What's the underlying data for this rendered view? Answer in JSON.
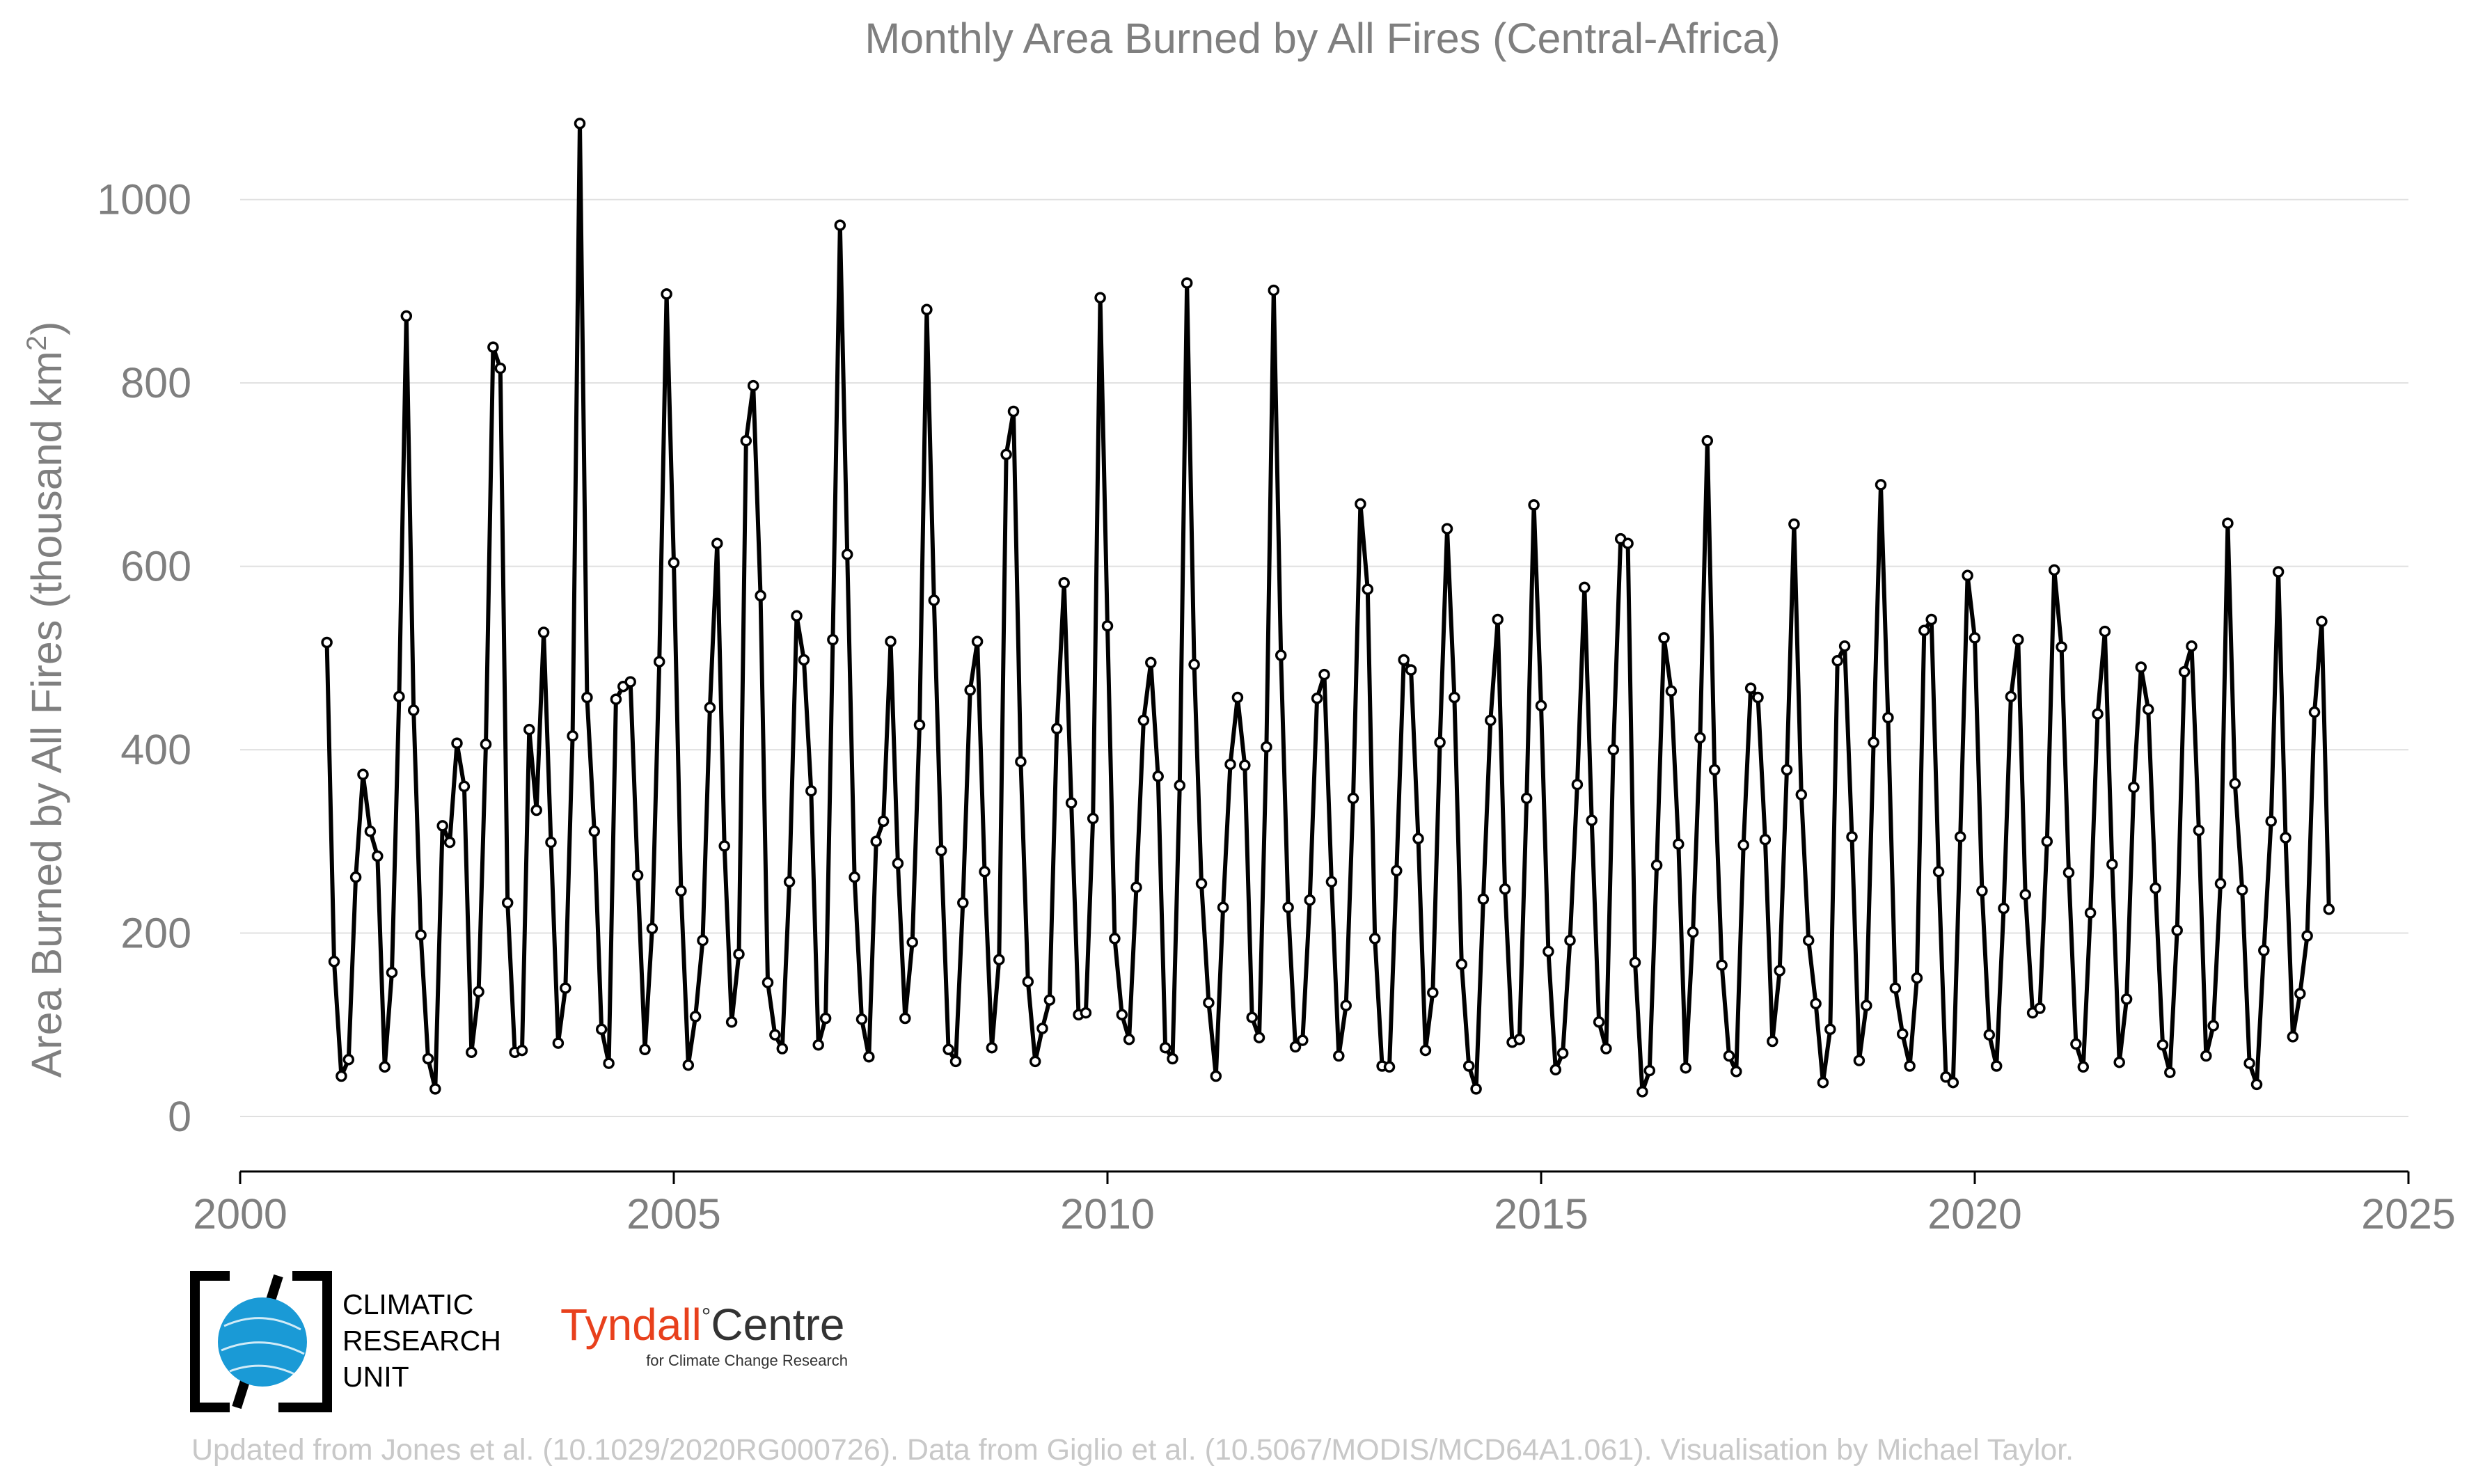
{
  "chart_data": {
    "type": "line",
    "title": "Monthly Area Burned by All Fires (Central-Africa)",
    "ylabel": "Area Burned by All Fires (thousand km",
    "ylabel_sup": "2",
    "ylabel_close": ")",
    "xlabel": "",
    "xlim": [
      2000,
      2025
    ],
    "ylim": [
      -60,
      1100
    ],
    "x_ticks": [
      "2000",
      "2005",
      "2010",
      "2015",
      "2020",
      "2025"
    ],
    "y_ticks": [
      "0",
      "200",
      "400",
      "600",
      "800",
      "1000"
    ],
    "grid": "horizontal",
    "x_start": "2001-01",
    "x_step": "1 month",
    "values": [
      517,
      169,
      44,
      62,
      261,
      373,
      311,
      284,
      54,
      157,
      458,
      873,
      443,
      198,
      63,
      30,
      317,
      299,
      407,
      360,
      70,
      136,
      406,
      839,
      816,
      233,
      70,
      72,
      422,
      334,
      528,
      299,
      80,
      140,
      415,
      1083,
      457,
      311,
      95,
      58,
      455,
      469,
      474,
      263,
      73,
      205,
      496,
      897,
      604,
      246,
      56,
      109,
      192,
      446,
      625,
      295,
      103,
      177,
      737,
      797,
      568,
      146,
      89,
      74,
      256,
      546,
      498,
      355,
      78,
      107,
      520,
      972,
      613,
      261,
      106,
      65,
      300,
      322,
      518,
      276,
      107,
      190,
      427,
      880,
      563,
      290,
      73,
      60,
      233,
      465,
      518,
      267,
      75,
      171,
      722,
      769,
      387,
      147,
      60,
      96,
      127,
      423,
      582,
      342,
      111,
      113,
      325,
      893,
      535,
      194,
      111,
      84,
      250,
      432,
      495,
      371,
      75,
      63,
      361,
      909,
      493,
      254,
      124,
      44,
      228,
      384,
      457,
      383,
      108,
      86,
      403,
      901,
      503,
      228,
      76,
      83,
      236,
      456,
      482,
      256,
      66,
      121,
      347,
      668,
      575,
      194,
      55,
      54,
      268,
      498,
      487,
      303,
      72,
      135,
      408,
      641,
      457,
      166,
      55,
      30,
      237,
      432,
      542,
      248,
      81,
      84,
      347,
      667,
      448,
      180,
      51,
      69,
      192,
      362,
      577,
      323,
      103,
      74,
      400,
      630,
      625,
      168,
      27,
      50,
      274,
      522,
      464,
      297,
      53,
      201,
      413,
      737,
      378,
      165,
      66,
      49,
      296,
      467,
      457,
      302,
      82,
      159,
      378,
      646,
      351,
      192,
      123,
      37,
      95,
      497,
      513,
      305,
      61,
      121,
      408,
      689,
      435,
      140,
      90,
      55,
      151,
      530,
      542,
      267,
      43,
      37,
      305,
      590,
      522,
      246,
      89,
      55,
      227,
      458,
      520,
      242,
      113,
      118,
      300,
      596,
      512,
      266,
      79,
      54,
      222,
      439,
      529,
      275,
      59,
      128,
      359,
      490,
      444,
      249,
      78,
      48,
      203,
      485,
      513,
      312,
      66,
      99,
      254,
      647,
      363,
      247,
      58,
      35,
      181,
      322,
      594,
      304,
      87,
      134,
      197,
      441,
      540,
      226
    ]
  },
  "footer": {
    "credit": "Updated from Jones et al. (10.1029/2020RG000726). Data from Giglio et al. (10.5067/MODIS/MCD64A1.061). Visualisation by Michael Taylor."
  },
  "logos": {
    "cru_line1": "CLIMATIC",
    "cru_line2": "RESEARCH",
    "cru_line3": "UNIT",
    "tyndall_name": "Tyndall",
    "tyndall_degree": "°",
    "tyndall_centre": "Centre",
    "tyndall_sub": "for Climate Change Research"
  },
  "colors": {
    "line": "#000000",
    "marker_fill": "#ffffff",
    "grid": "#e0e0e0",
    "axis_text": "#7f7f7f",
    "footer_text": "#c8c8c8",
    "cru_blue": "#1a9ad6",
    "tyndall_red": "#e8401c"
  }
}
